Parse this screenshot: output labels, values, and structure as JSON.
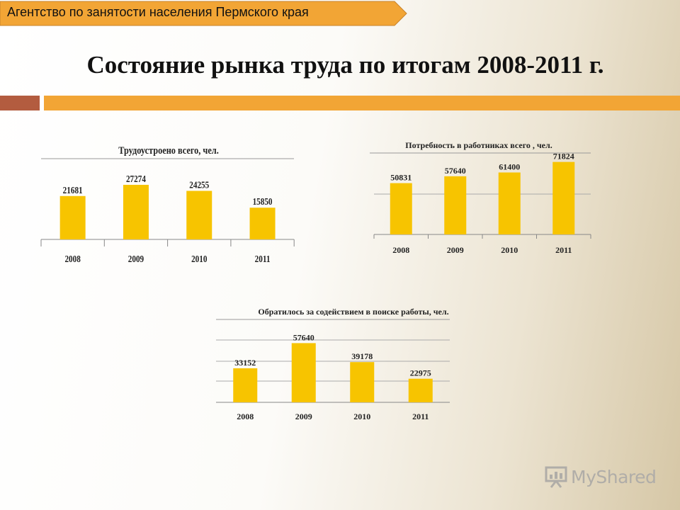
{
  "header": {
    "agency": "Агентство по занятости населения Пермского края",
    "title": "Состояние рынка труда по итогам 2008-2011 г."
  },
  "colors": {
    "bar": "#f7c400",
    "accent_orange": "#f2a535",
    "accent_brown": "#b35c3f",
    "tab": "#f2a535"
  },
  "logo": {
    "text": "MyShared",
    "icon": "presentation-board-icon"
  },
  "chart_data": [
    {
      "type": "bar",
      "title": "Трудоустроено всего, чел.",
      "categories": [
        "2008",
        "2009",
        "2010",
        "2011"
      ],
      "values": [
        21681,
        27274,
        24255,
        15850
      ],
      "ylim": [
        0,
        40000
      ],
      "grid": false
    },
    {
      "type": "bar",
      "title": "Потребность в работниках всего , чел.",
      "categories": [
        "2008",
        "2009",
        "2010",
        "2011"
      ],
      "values": [
        50831,
        57640,
        61400,
        71824
      ],
      "ylim": [
        0,
        80000
      ],
      "grid": true
    },
    {
      "type": "bar",
      "title": "Обратилось за содействием в поиске работы, чел.",
      "categories": [
        "2008",
        "2009",
        "2010",
        "2011"
      ],
      "values": [
        33152,
        57640,
        39178,
        22975
      ],
      "ylim": [
        0,
        80000
      ],
      "grid": true
    }
  ]
}
